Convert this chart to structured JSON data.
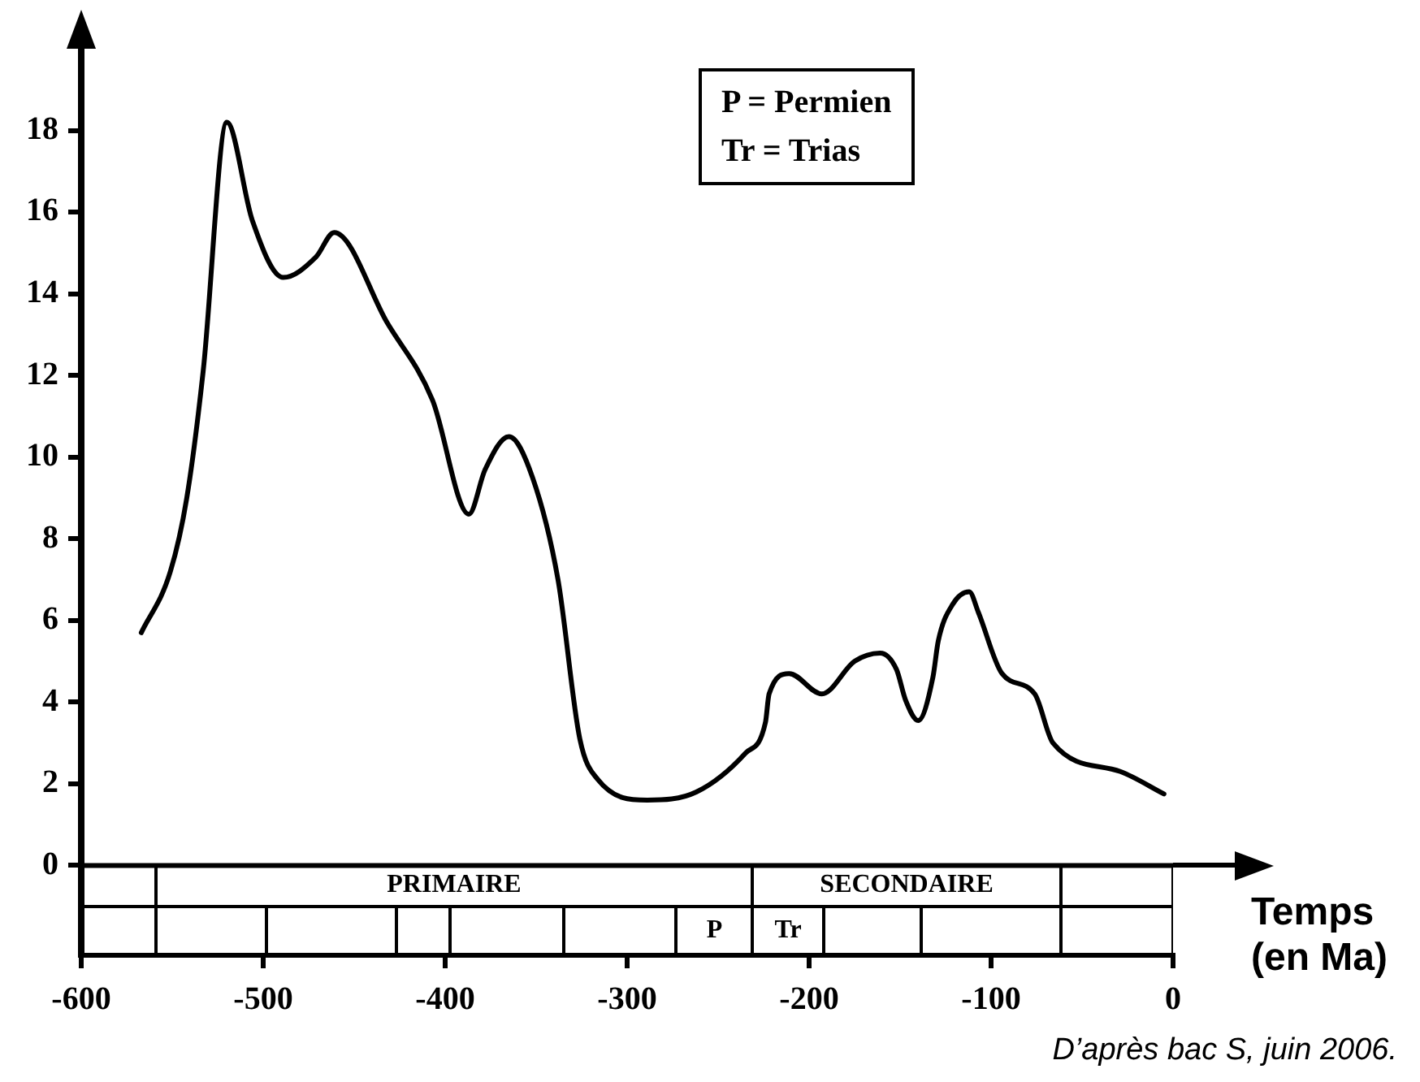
{
  "chart_data": {
    "type": "line",
    "xlabel": "Temps (en Ma)",
    "annotations": [
      "P = Permien",
      "Tr = Trias",
      "PRIMAIRE",
      "SECONDAIRE",
      "P",
      "Tr",
      "D’après bac S, juin 2006."
    ],
    "x": [
      -567,
      -551,
      -542,
      -533,
      -520,
      -506,
      -489,
      -471,
      -461,
      -432,
      -407,
      -387,
      -378,
      -365,
      -352,
      -338,
      -326,
      -316,
      -289,
      -262,
      -235,
      -224,
      -222,
      -211,
      -193,
      -175,
      -161,
      -152,
      -147,
      -140,
      -132,
      -129,
      -121,
      -112,
      -107,
      -94,
      -76,
      -66,
      -29,
      -5
    ],
    "series": [
      {
        "color": "#000000",
        "values": [
          5.7,
          7.2,
          9.0,
          12.1,
          18.2,
          15.8,
          14.4,
          14.9,
          15.5,
          13.3,
          11.4,
          8.6,
          9.7,
          10.5,
          9.5,
          7.0,
          3.1,
          2.1,
          1.6,
          1.8,
          2.75,
          3.5,
          4.2,
          4.7,
          4.2,
          5.0,
          5.2,
          4.8,
          4.05,
          3.55,
          4.6,
          5.5,
          6.4,
          6.7,
          6.2,
          4.7,
          4.2,
          3.0,
          2.3,
          1.75
        ]
      }
    ],
    "xlim": [
      -600,
      0
    ],
    "xticks": [
      -600,
      -500,
      -400,
      -300,
      -200,
      -100,
      0
    ],
    "ylim": [
      -2.2,
      20
    ],
    "yticks": [
      0,
      2,
      4,
      6,
      8,
      10,
      12,
      14,
      16,
      18
    ],
    "legend": false,
    "marker": "none",
    "line_style": "solid"
  }
}
